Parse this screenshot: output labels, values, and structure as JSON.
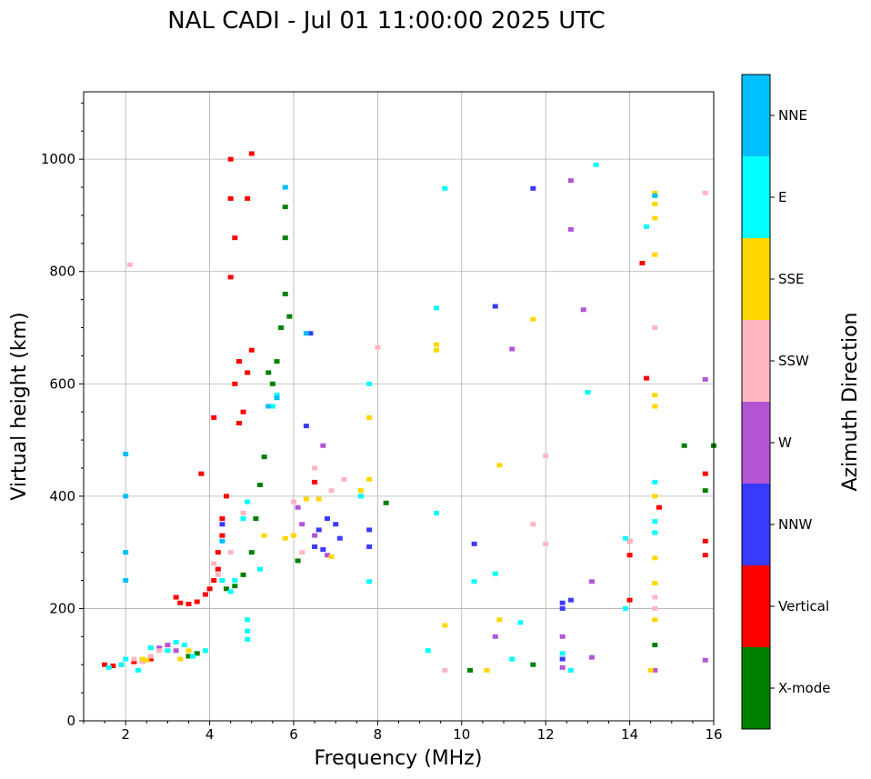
{
  "chart_data": {
    "type": "scatter",
    "title": "NAL CADI - Jul 01 11:00:00 2025 UTC",
    "xlabel": "Frequency (MHz)",
    "ylabel": "Virtual height (km)",
    "xlim": [
      1,
      16
    ],
    "ylim": [
      0,
      1120
    ],
    "xticks": [
      2,
      4,
      6,
      8,
      10,
      12,
      14,
      16
    ],
    "yticks": [
      0,
      200,
      400,
      600,
      800,
      1000
    ],
    "grid": true,
    "colorbar": {
      "label": "Azimuth Direction",
      "categories": [
        {
          "name": "X-mode",
          "color": "#008000"
        },
        {
          "name": "Vertical",
          "color": "#ff0000"
        },
        {
          "name": "NNW",
          "color": "#3a3aff"
        },
        {
          "name": "W",
          "color": "#b455d4"
        },
        {
          "name": "SSW",
          "color": "#ffb6c1"
        },
        {
          "name": "SSE",
          "color": "#ffd700"
        },
        {
          "name": "E",
          "color": "#00ffff"
        },
        {
          "name": "NNE",
          "color": "#00bfff"
        }
      ]
    },
    "series": [
      {
        "name": "X-mode",
        "points": [
          [
            3.5,
            115
          ],
          [
            3.7,
            120
          ],
          [
            4.4,
            235
          ],
          [
            4.6,
            240
          ],
          [
            4.8,
            260
          ],
          [
            5.0,
            300
          ],
          [
            5.1,
            360
          ],
          [
            5.2,
            420
          ],
          [
            5.3,
            470
          ],
          [
            5.4,
            620
          ],
          [
            5.5,
            600
          ],
          [
            5.6,
            640
          ],
          [
            5.7,
            700
          ],
          [
            5.8,
            760
          ],
          [
            5.9,
            720
          ],
          [
            5.8,
            860
          ],
          [
            5.8,
            915
          ],
          [
            6.1,
            285
          ],
          [
            8.2,
            388
          ],
          [
            10.2,
            90
          ],
          [
            11.7,
            100
          ],
          [
            14.6,
            135
          ],
          [
            15.3,
            490
          ],
          [
            15.8,
            410
          ],
          [
            16.0,
            490
          ]
        ]
      },
      {
        "name": "Vertical",
        "points": [
          [
            1.5,
            100
          ],
          [
            1.7,
            98
          ],
          [
            1.9,
            100
          ],
          [
            2.2,
            105
          ],
          [
            2.4,
            107
          ],
          [
            2.6,
            110
          ],
          [
            3.2,
            220
          ],
          [
            3.3,
            210
          ],
          [
            3.5,
            208
          ],
          [
            3.7,
            212
          ],
          [
            3.9,
            225
          ],
          [
            4.0,
            235
          ],
          [
            4.1,
            250
          ],
          [
            4.2,
            270
          ],
          [
            4.2,
            300
          ],
          [
            4.3,
            330
          ],
          [
            4.3,
            360
          ],
          [
            4.4,
            400
          ],
          [
            4.1,
            540
          ],
          [
            3.8,
            440
          ],
          [
            4.7,
            530
          ],
          [
            4.8,
            550
          ],
          [
            4.6,
            600
          ],
          [
            4.7,
            640
          ],
          [
            4.9,
            620
          ],
          [
            5.0,
            660
          ],
          [
            4.5,
            790
          ],
          [
            4.6,
            860
          ],
          [
            4.5,
            930
          ],
          [
            4.9,
            930
          ],
          [
            4.5,
            1000
          ],
          [
            5.0,
            1010
          ],
          [
            6.5,
            425
          ],
          [
            14.3,
            815
          ],
          [
            14.4,
            610
          ],
          [
            14.0,
            215
          ],
          [
            14.0,
            320
          ],
          [
            14.0,
            295
          ],
          [
            14.7,
            380
          ],
          [
            15.8,
            440
          ],
          [
            15.8,
            320
          ],
          [
            15.8,
            295
          ]
        ]
      },
      {
        "name": "NNW",
        "points": [
          [
            4.3,
            350
          ],
          [
            6.4,
            690
          ],
          [
            6.3,
            525
          ],
          [
            6.6,
            340
          ],
          [
            6.8,
            360
          ],
          [
            7.0,
            350
          ],
          [
            7.1,
            325
          ],
          [
            6.7,
            305
          ],
          [
            6.5,
            310
          ],
          [
            7.8,
            310
          ],
          [
            7.8,
            340
          ],
          [
            10.3,
            315
          ],
          [
            10.8,
            738
          ],
          [
            11.7,
            948
          ],
          [
            12.4,
            210
          ],
          [
            12.4,
            200
          ],
          [
            12.4,
            110
          ],
          [
            12.6,
            215
          ]
        ]
      },
      {
        "name": "W",
        "points": [
          [
            2.8,
            130
          ],
          [
            3.0,
            135
          ],
          [
            3.2,
            125
          ],
          [
            6.1,
            380
          ],
          [
            6.2,
            350
          ],
          [
            6.5,
            330
          ],
          [
            6.8,
            295
          ],
          [
            6.7,
            490
          ],
          [
            7.6,
            400
          ],
          [
            10.8,
            150
          ],
          [
            11.2,
            662
          ],
          [
            12.4,
            150
          ],
          [
            12.4,
            95
          ],
          [
            12.6,
            962
          ],
          [
            12.6,
            875
          ],
          [
            12.9,
            732
          ],
          [
            13.1,
            248
          ],
          [
            13.1,
            113
          ],
          [
            14.6,
            90
          ],
          [
            15.8,
            608
          ],
          [
            15.8,
            108
          ]
        ]
      },
      {
        "name": "SSW",
        "points": [
          [
            2.2,
            110
          ],
          [
            2.4,
            105
          ],
          [
            2.6,
            115
          ],
          [
            2.8,
            125
          ],
          [
            4.1,
            280
          ],
          [
            4.2,
            260
          ],
          [
            4.5,
            300
          ],
          [
            4.8,
            370
          ],
          [
            4.9,
            390
          ],
          [
            6.0,
            390
          ],
          [
            6.2,
            300
          ],
          [
            6.5,
            450
          ],
          [
            6.9,
            410
          ],
          [
            7.2,
            430
          ],
          [
            8.0,
            665
          ],
          [
            12.0,
            315
          ],
          [
            11.7,
            350
          ],
          [
            12.0,
            472
          ],
          [
            14.0,
            320
          ],
          [
            14.6,
            220
          ],
          [
            14.6,
            200
          ],
          [
            14.6,
            700
          ],
          [
            15.8,
            940
          ],
          [
            2.1,
            812
          ],
          [
            9.6,
            90
          ]
        ]
      },
      {
        "name": "SSE",
        "points": [
          [
            2.4,
            110
          ],
          [
            2.5,
            108
          ],
          [
            3.3,
            110
          ],
          [
            3.5,
            125
          ],
          [
            5.3,
            330
          ],
          [
            5.8,
            325
          ],
          [
            6.0,
            330
          ],
          [
            6.3,
            395
          ],
          [
            6.6,
            395
          ],
          [
            6.9,
            292
          ],
          [
            7.6,
            410
          ],
          [
            7.8,
            430
          ],
          [
            7.8,
            540
          ],
          [
            9.4,
            670
          ],
          [
            9.4,
            660
          ],
          [
            9.6,
            170
          ],
          [
            10.6,
            90
          ],
          [
            10.9,
            455
          ],
          [
            10.9,
            180
          ],
          [
            11.7,
            715
          ],
          [
            14.6,
            940
          ],
          [
            14.6,
            920
          ],
          [
            14.6,
            830
          ],
          [
            14.6,
            580
          ],
          [
            14.6,
            560
          ],
          [
            14.6,
            400
          ],
          [
            14.6,
            290
          ],
          [
            14.6,
            245
          ],
          [
            14.6,
            180
          ],
          [
            14.5,
            90
          ],
          [
            14.6,
            895
          ]
        ]
      },
      {
        "name": "E",
        "points": [
          [
            1.6,
            95
          ],
          [
            1.9,
            100
          ],
          [
            2.0,
            110
          ],
          [
            2.3,
            90
          ],
          [
            2.6,
            130
          ],
          [
            3.0,
            125
          ],
          [
            3.2,
            140
          ],
          [
            3.4,
            135
          ],
          [
            3.6,
            115
          ],
          [
            3.9,
            125
          ],
          [
            4.3,
            250
          ],
          [
            4.5,
            230
          ],
          [
            4.6,
            250
          ],
          [
            4.8,
            360
          ],
          [
            4.9,
            180
          ],
          [
            4.9,
            160
          ],
          [
            4.9,
            145
          ],
          [
            4.9,
            390
          ],
          [
            5.5,
            560
          ],
          [
            5.6,
            580
          ],
          [
            5.2,
            270
          ],
          [
            7.6,
            400
          ],
          [
            7.8,
            600
          ],
          [
            7.8,
            248
          ],
          [
            9.2,
            125
          ],
          [
            9.4,
            370
          ],
          [
            9.4,
            735
          ],
          [
            9.6,
            948
          ],
          [
            10.3,
            248
          ],
          [
            10.8,
            262
          ],
          [
            11.2,
            110
          ],
          [
            11.4,
            175
          ],
          [
            12.4,
            120
          ],
          [
            12.6,
            90
          ],
          [
            13.0,
            585
          ],
          [
            13.2,
            990
          ],
          [
            13.9,
            325
          ],
          [
            13.9,
            200
          ],
          [
            14.4,
            880
          ],
          [
            14.6,
            425
          ],
          [
            14.6,
            355
          ],
          [
            14.6,
            335
          ]
        ]
      },
      {
        "name": "NNE",
        "points": [
          [
            2.0,
            475
          ],
          [
            2.0,
            400
          ],
          [
            2.0,
            300
          ],
          [
            2.0,
            250
          ],
          [
            4.3,
            320
          ],
          [
            5.6,
            575
          ],
          [
            5.4,
            560
          ],
          [
            5.8,
            950
          ],
          [
            6.3,
            690
          ],
          [
            14.6,
            935
          ]
        ]
      }
    ]
  }
}
